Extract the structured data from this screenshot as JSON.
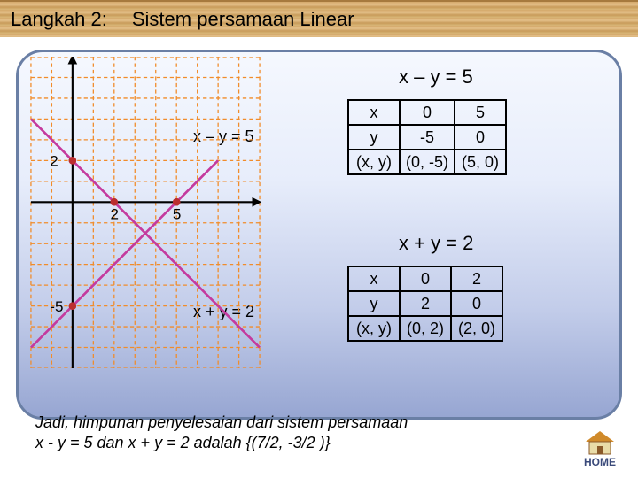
{
  "header": {
    "step": "Langkah 2:",
    "title": "Sistem persamaan Linear"
  },
  "eq1": {
    "title": "x – y = 5",
    "label": "x – y = 5",
    "table": {
      "columns": [
        "x",
        "0",
        "5"
      ],
      "rows": [
        [
          "y",
          "-5",
          "0"
        ],
        [
          "(x, y)",
          "(0, -5)",
          "(5, 0)"
        ]
      ]
    },
    "line_color": "#c43a9e"
  },
  "eq2": {
    "title": "x + y = 2",
    "label": "x + y = 2",
    "table": {
      "columns": [
        "x",
        "0",
        "2"
      ],
      "rows": [
        [
          "y",
          "2",
          "0"
        ],
        [
          "(x, y)",
          "(0, 2)",
          "(2, 0)"
        ]
      ]
    },
    "line_color": "#c43a9e"
  },
  "graph": {
    "cell": 22,
    "origin_col": 2,
    "origin_row": 7,
    "cols": 11,
    "rows": 15,
    "grid_color": "#f18c2a",
    "axis_color": "#000000",
    "axis_arrow_color": "#000000",
    "point_marker_color": "#bb2e2e",
    "xticks": [
      2,
      5
    ],
    "yticks": [
      2,
      -5
    ],
    "line1": {
      "p0": [
        -2,
        -7
      ],
      "p1": [
        7,
        2
      ]
    },
    "line2": {
      "p0": [
        -2,
        4
      ],
      "p1": [
        9,
        -7
      ]
    }
  },
  "conclusion": {
    "line1": "Jadi, himpunan penyelesaian dari sistem persamaan",
    "line2": "x - y = 5 dan x + y = 2  adalah {(7/2, -3/2 )}"
  },
  "home": {
    "label": "HOME"
  },
  "colors": {
    "panel_border": "#6a7fa5",
    "home_roof": "#d08a2a",
    "home_wall": "#e9dca8",
    "home_door": "#8a5a2a"
  }
}
